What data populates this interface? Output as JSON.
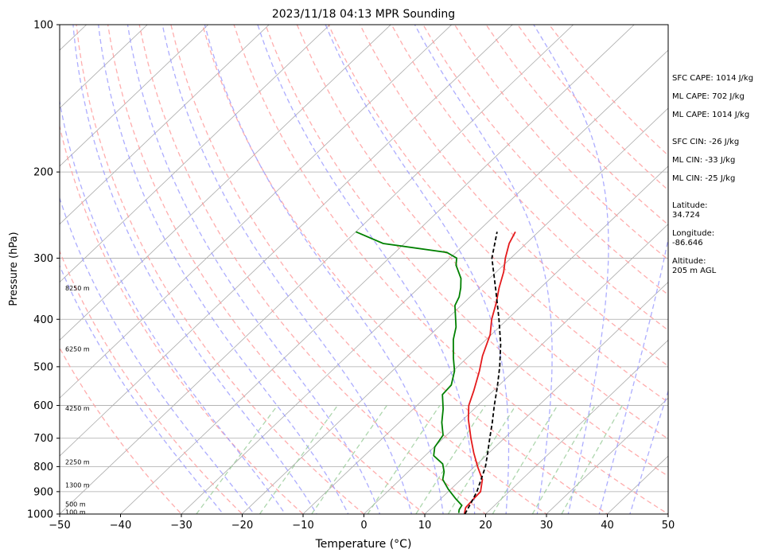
{
  "chart_data": {
    "type": "line",
    "title": "2023/11/18 04:13 MPR Sounding",
    "xlabel": "Temperature (°C)",
    "ylabel": "Pressure (hPa)",
    "xlim": [
      -50,
      50
    ],
    "ylim": [
      1000,
      100
    ],
    "y_scale": "log",
    "x_ticks": [
      "−50",
      "−40",
      "−30",
      "−20",
      "−10",
      "0",
      "10",
      "20",
      "30",
      "40",
      "50"
    ],
    "y_ticks": [
      "1000",
      "900",
      "800",
      "700",
      "600",
      "500",
      "400",
      "300",
      "200",
      "100"
    ],
    "height_labels": [
      {
        "text": "100 m",
        "p": 990
      },
      {
        "text": "500 m",
        "p": 955
      },
      {
        "text": "1300 m",
        "p": 873
      },
      {
        "text": "2250 m",
        "p": 782
      },
      {
        "text": "4250 m",
        "p": 608
      },
      {
        "text": "6250 m",
        "p": 460
      },
      {
        "text": "8250 m",
        "p": 345
      }
    ],
    "series": [
      {
        "name": "",
        "color": "#e41a1c",
        "points": [
          [
            16.5,
            1000
          ],
          [
            15.6,
            970
          ],
          [
            15.4,
            930
          ],
          [
            15.3,
            900
          ],
          [
            13.5,
            850
          ],
          [
            10.5,
            800
          ],
          [
            7.5,
            750
          ],
          [
            4.5,
            700
          ],
          [
            0.8,
            640
          ],
          [
            -1.5,
            600
          ],
          [
            -3.2,
            560
          ],
          [
            -5.7,
            510
          ],
          [
            -7.8,
            475
          ],
          [
            -10.2,
            430
          ],
          [
            -12.6,
            400
          ],
          [
            -14.7,
            370
          ],
          [
            -16.8,
            345
          ],
          [
            -18.8,
            320
          ],
          [
            -20.9,
            300
          ],
          [
            -22.8,
            280
          ],
          [
            -23.8,
            265
          ]
        ]
      },
      {
        "name": "",
        "color": "#008000",
        "points": [
          [
            15.4,
            995
          ],
          [
            14.9,
            980
          ],
          [
            14.6,
            960
          ],
          [
            12.4,
            930
          ],
          [
            9.6,
            890
          ],
          [
            7.0,
            850
          ],
          [
            5.9,
            820
          ],
          [
            4.3,
            790
          ],
          [
            1.4,
            760
          ],
          [
            0.1,
            730
          ],
          [
            -0.6,
            690
          ],
          [
            -3.0,
            650
          ],
          [
            -5.1,
            610
          ],
          [
            -7.7,
            570
          ],
          [
            -7.9,
            545
          ],
          [
            -9.8,
            510
          ],
          [
            -12.2,
            480
          ],
          [
            -15.4,
            440
          ],
          [
            -17.1,
            415
          ],
          [
            -21.0,
            375
          ],
          [
            -21.8,
            360
          ],
          [
            -23.1,
            345
          ],
          [
            -24.7,
            330
          ],
          [
            -27.8,
            310
          ],
          [
            -28.9,
            300
          ],
          [
            -31.5,
            292
          ],
          [
            -43.5,
            280
          ],
          [
            -50.0,
            265
          ]
        ]
      },
      {
        "name": "",
        "color": "#000000",
        "dashed": true,
        "points": [
          [
            16.6,
            1000
          ],
          [
            15.7,
            950
          ],
          [
            14.7,
            900
          ],
          [
            13.3,
            850
          ],
          [
            11.8,
            800
          ],
          [
            9.8,
            750
          ],
          [
            7.6,
            700
          ],
          [
            5.3,
            650
          ],
          [
            2.7,
            600
          ],
          [
            0.0,
            550
          ],
          [
            -3.1,
            500
          ],
          [
            -6.8,
            450
          ],
          [
            -11.4,
            400
          ],
          [
            -16.8,
            350
          ],
          [
            -23.1,
            300
          ],
          [
            -26.8,
            265
          ]
        ]
      }
    ],
    "stats": {
      "sfc_cape": "SFC CAPE: 1014 J/kg",
      "ml_cape_1": "ML CAPE: 702 J/kg",
      "ml_cape_2": "ML CAPE: 1014 J/kg",
      "sfc_cin": "SFC CIN: -26 J/kg",
      "ml_cin_1": "ML CIN: -33 J/kg",
      "ml_cin_2": "ML CIN: -25 J/kg",
      "latitude_label": "Latitude:",
      "latitude_value": "34.724",
      "longitude_label": "Longitude:",
      "longitude_value": "-86.646",
      "altitude_label": "Altitude:",
      "altitude_value": "205 m AGL"
    },
    "colors": {
      "dry_adiabat": "#ff9999",
      "moist_adiabat": "#9999ff",
      "mixing_ratio": "#99cc99",
      "isotherm": "#aaaaaa",
      "isobar": "#aaaaaa"
    }
  }
}
